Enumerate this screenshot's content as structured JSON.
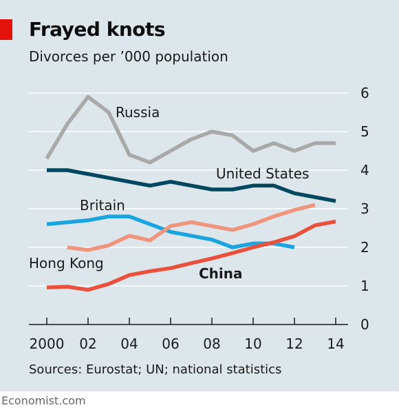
{
  "header": {
    "title": "Frayed knots",
    "subtitle": "Divorces per ’000 population"
  },
  "footer": {
    "source": "Sources: Eurostat; UN; national statistics",
    "credit": "Economist.com"
  },
  "colors": {
    "panel_bg": "#dde6eb",
    "accent_red": "#e3120b",
    "gridline": "#ffffff",
    "baseline": "#1a1a1a"
  },
  "chart_data": {
    "type": "line",
    "title": "Frayed knots",
    "subtitle": "Divorces per ’000 population",
    "xlabel": "",
    "ylabel": "",
    "xlim": [
      2000,
      2014
    ],
    "ylim": [
      0,
      6
    ],
    "x_ticks": [
      2000,
      2002,
      2004,
      2006,
      2008,
      2010,
      2012,
      2014
    ],
    "x_tick_labels": [
      "2000",
      "02",
      "04",
      "06",
      "08",
      "10",
      "12",
      "14"
    ],
    "y_ticks": [
      0,
      1,
      2,
      3,
      4,
      5,
      6
    ],
    "y_tick_labels": [
      "0",
      "1",
      "2",
      "3",
      "4",
      "5",
      "6"
    ],
    "y_axis_side": "right",
    "grid": true,
    "legend": "inline labels",
    "series": [
      {
        "name": "Russia",
        "color": "#a9a9a9",
        "bold_label": false,
        "x": [
          2000,
          2001,
          2002,
          2003,
          2004,
          2005,
          2006,
          2007,
          2008,
          2009,
          2010,
          2011,
          2012,
          2013,
          2014
        ],
        "y": [
          4.3,
          5.2,
          5.9,
          5.5,
          4.4,
          4.2,
          4.5,
          4.8,
          5.0,
          4.9,
          4.5,
          4.7,
          4.5,
          4.7,
          4.7
        ]
      },
      {
        "name": "United States",
        "color": "#00475f",
        "bold_label": false,
        "x": [
          2000,
          2001,
          2002,
          2003,
          2004,
          2005,
          2006,
          2007,
          2008,
          2009,
          2010,
          2011,
          2012,
          2013,
          2014
        ],
        "y": [
          4.0,
          4.0,
          3.9,
          3.8,
          3.7,
          3.6,
          3.7,
          3.6,
          3.5,
          3.5,
          3.6,
          3.6,
          3.4,
          3.3,
          3.2
        ]
      },
      {
        "name": "Britain",
        "color": "#1ba4df",
        "bold_label": false,
        "x": [
          2000,
          2001,
          2002,
          2003,
          2004,
          2005,
          2006,
          2007,
          2008,
          2009,
          2010,
          2011,
          2012
        ],
        "y": [
          2.6,
          2.65,
          2.7,
          2.8,
          2.8,
          2.6,
          2.4,
          2.3,
          2.2,
          2.0,
          2.1,
          2.1,
          2.0
        ]
      },
      {
        "name": "Hong Kong",
        "color": "#f0957d",
        "bold_label": false,
        "x": [
          2001,
          2002,
          2003,
          2004,
          2005,
          2006,
          2007,
          2008,
          2009,
          2010,
          2011,
          2012,
          2013
        ],
        "y": [
          2.0,
          1.93,
          2.05,
          2.3,
          2.18,
          2.55,
          2.65,
          2.55,
          2.45,
          2.6,
          2.8,
          2.97,
          3.1
        ]
      },
      {
        "name": "China",
        "color": "#e9513d",
        "bold_label": true,
        "x": [
          2000,
          2001,
          2002,
          2003,
          2004,
          2005,
          2006,
          2007,
          2008,
          2009,
          2010,
          2011,
          2012,
          2013,
          2014
        ],
        "y": [
          0.96,
          0.98,
          0.9,
          1.05,
          1.28,
          1.38,
          1.46,
          1.59,
          1.71,
          1.85,
          2.0,
          2.13,
          2.29,
          2.57,
          2.67
        ]
      }
    ]
  }
}
